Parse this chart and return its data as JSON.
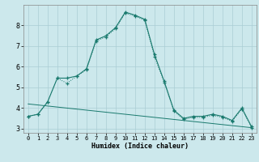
{
  "xlabel": "Humidex (Indice chaleur)",
  "background_color": "#cce8ec",
  "line_color": "#1a7a6e",
  "grid_color": "#aacdd4",
  "x_values": [
    0,
    1,
    2,
    3,
    4,
    5,
    6,
    7,
    8,
    9,
    10,
    11,
    12,
    13,
    14,
    15,
    16,
    17,
    18,
    19,
    20,
    21,
    22,
    23
  ],
  "line1": [
    3.6,
    3.7,
    4.3,
    5.45,
    5.45,
    5.55,
    5.9,
    7.3,
    7.5,
    7.9,
    8.65,
    8.5,
    8.3,
    6.6,
    5.3,
    3.9,
    3.5,
    3.6,
    3.6,
    3.7,
    3.6,
    3.4,
    4.0,
    3.1
  ],
  "line2": [
    3.6,
    3.7,
    4.3,
    5.45,
    5.2,
    5.55,
    5.85,
    7.25,
    7.45,
    7.85,
    8.6,
    8.45,
    8.25,
    6.5,
    5.25,
    3.85,
    3.45,
    3.55,
    3.55,
    3.65,
    3.55,
    3.35,
    3.95,
    3.05
  ],
  "line3": [
    4.2,
    4.15,
    4.1,
    4.05,
    4.0,
    3.95,
    3.9,
    3.85,
    3.8,
    3.75,
    3.7,
    3.65,
    3.6,
    3.55,
    3.5,
    3.45,
    3.4,
    3.35,
    3.3,
    3.25,
    3.2,
    3.15,
    3.1,
    3.05
  ],
  "ylim": [
    2.8,
    9.0
  ],
  "yticks": [
    3,
    4,
    5,
    6,
    7,
    8
  ],
  "xlim": [
    -0.5,
    23.5
  ],
  "xticks": [
    0,
    1,
    2,
    3,
    4,
    5,
    6,
    7,
    8,
    9,
    10,
    11,
    12,
    13,
    14,
    15,
    16,
    17,
    18,
    19,
    20,
    21,
    22,
    23
  ]
}
